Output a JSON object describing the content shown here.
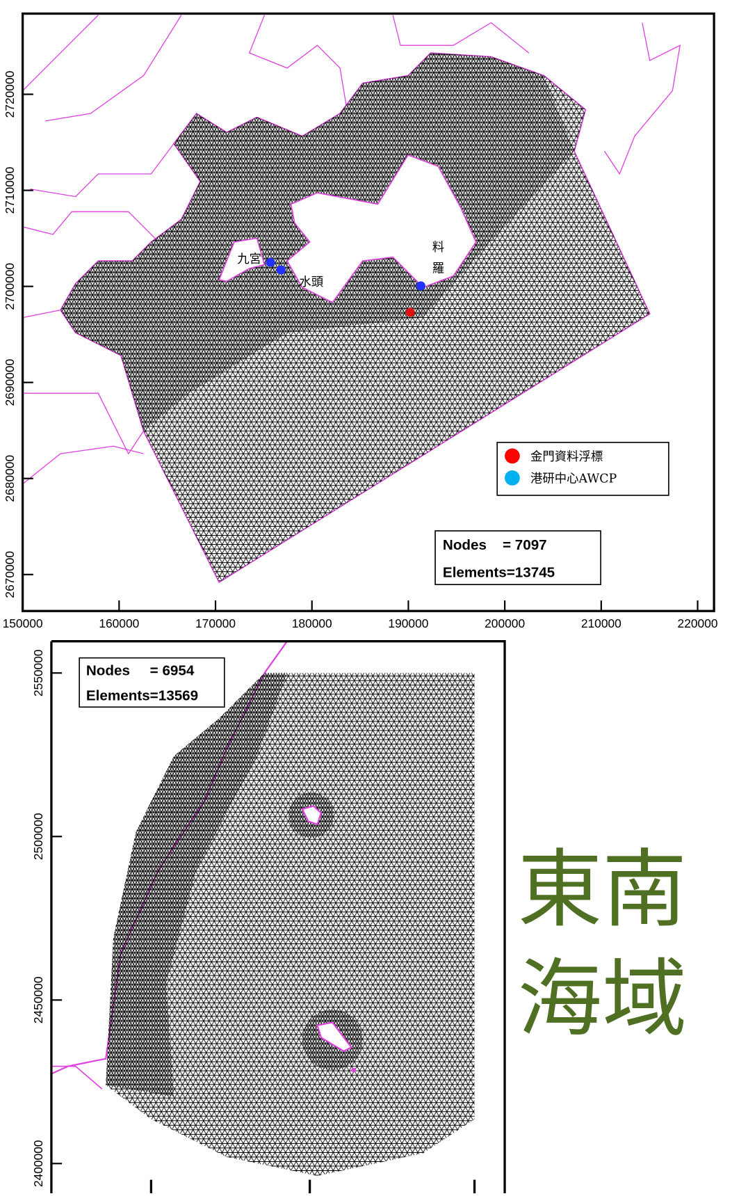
{
  "panels": [
    {
      "xlim": [
        150000,
        221700
      ],
      "ylim": [
        2666200,
        2728400
      ],
      "xticks": [
        150000,
        160000,
        170000,
        180000,
        190000,
        200000,
        210000,
        220000
      ],
      "yticks": [
        2670000,
        2680000,
        2690000,
        2700000,
        2710000,
        2720000
      ],
      "place_labels": [
        "九宮",
        "水頭",
        "料",
        "羅"
      ],
      "legend": [
        {
          "name": "金門資料浮標",
          "color": "#ff0000"
        },
        {
          "name": "港研中心AWCP",
          "color": "#00b0f0"
        }
      ],
      "stats": [
        "Nodes    = 7097",
        "Elements=13745"
      ]
    },
    {
      "ylim": [
        2390900,
        2559700
      ],
      "yticks": [
        2400000,
        2450000,
        2500000,
        2550000
      ],
      "stats": [
        "Nodes     = 6954",
        "Elements=13569"
      ]
    }
  ],
  "side_title": [
    "東南",
    "海域"
  ]
}
